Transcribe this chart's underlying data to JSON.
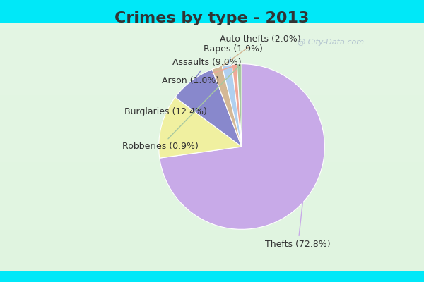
{
  "title": "Crimes by type - 2013",
  "slices": [
    {
      "label": "Thefts (72.8%)",
      "value": 72.8,
      "color": "#c8aae8"
    },
    {
      "label": "Burglaries (12.4%)",
      "value": 12.4,
      "color": "#f0f0a0"
    },
    {
      "label": "Assaults (9.0%)",
      "value": 9.0,
      "color": "#8888cc"
    },
    {
      "label": "Auto thefts (2.0%)",
      "value": 2.0,
      "color": "#d4b896"
    },
    {
      "label": "Rapes (1.9%)",
      "value": 1.9,
      "color": "#b0d0f0"
    },
    {
      "label": "Arson (1.0%)",
      "value": 1.0,
      "color": "#f0a898"
    },
    {
      "label": "Robberies (0.9%)",
      "value": 0.9,
      "color": "#a8c8a0"
    }
  ],
  "bg_cyan": "#00e8f8",
  "bg_gradient_top": "#c8e8d8",
  "bg_gradient_bottom": "#e8f4e8",
  "title_fontsize": 16,
  "title_color": "#333333",
  "label_fontsize": 9,
  "watermark": "@ City-Data.com",
  "startangle": 90
}
